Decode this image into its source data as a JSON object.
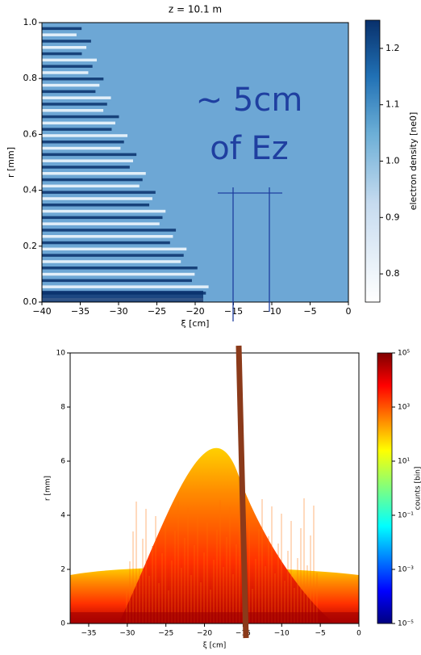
{
  "chart_data": [
    {
      "type": "heatmap",
      "title": "z = 10.1 m",
      "x_label": "ξ [cm]",
      "y_label": "r [mm]",
      "xlim": [
        -40,
        0
      ],
      "xticks": [
        {
          "value": -40,
          "label": "−40"
        },
        {
          "value": -35,
          "label": "−35"
        },
        {
          "value": -30,
          "label": "−30"
        },
        {
          "value": -25,
          "label": "−25"
        },
        {
          "value": -20,
          "label": "−20"
        },
        {
          "value": -15,
          "label": "−15"
        },
        {
          "value": -10,
          "label": "−10"
        },
        {
          "value": -5,
          "label": "−5"
        },
        0
      ],
      "ylim": [
        0,
        1
      ],
      "yticks": [
        {
          "value": 0,
          "label": "0.0"
        },
        0.2,
        0.4,
        0.6,
        0.8,
        {
          "value": 1,
          "label": "1.0"
        }
      ],
      "colorbar": {
        "label": "electron density [ne0]",
        "colormap": "Blues",
        "log": false,
        "lim": [
          0.75,
          1.25
        ],
        "ticks": [
          0.8,
          0.9,
          {
            "value": 1,
            "label": "1.0"
          },
          1.1,
          1.2
        ]
      },
      "annotations": [
        "~ 5cm",
        "of Ez"
      ]
    },
    {
      "type": "heatmap",
      "x_label": "ξ [cm]",
      "y_label": "r [mm]",
      "xlim": [
        -37.4,
        0
      ],
      "xticks": [
        {
          "value": -35,
          "label": "−35"
        },
        {
          "value": -30,
          "label": "−30"
        },
        {
          "value": -25,
          "label": "−25"
        },
        {
          "value": -20,
          "label": "−20"
        },
        {
          "value": -15,
          "label": "−15"
        },
        {
          "value": -10,
          "label": "−10"
        },
        {
          "value": -5,
          "label": "−5"
        },
        0
      ],
      "ylim": [
        0,
        10
      ],
      "yticks": [
        0,
        2,
        4,
        6,
        8,
        10
      ],
      "colorbar": {
        "label": "counts [bin]",
        "colormap": "jet",
        "log": true,
        "lim": [
          1e-05,
          100000.0
        ],
        "ticks": [
          {
            "value": 1e-05,
            "label": "10⁻⁵"
          },
          {
            "value": 0.001,
            "label": "10⁻³"
          },
          {
            "value": 0.1,
            "label": "10⁻¹"
          },
          {
            "value": 10,
            "label": "10¹"
          },
          {
            "value": 1000,
            "label": "10³"
          },
          {
            "value": 100000,
            "label": "10⁵"
          }
        ]
      }
    }
  ]
}
